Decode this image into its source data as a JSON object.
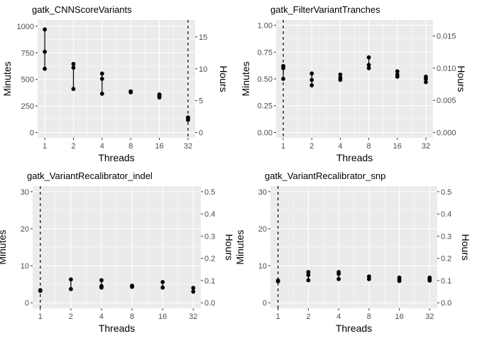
{
  "figure": {
    "background": "#ffffff",
    "panel_bg": "#ebebeb",
    "grid": "#ffffff",
    "point_color": "#000000",
    "vline_color": "#000000"
  },
  "chart_data": [
    {
      "type": "scatter",
      "title": "gatk_CNNScoreVariants",
      "xlabel": "Threads",
      "ylabel": "Minutes",
      "y2label": "Hours",
      "x_scale": "log2",
      "x_ticks": [
        1,
        2,
        4,
        8,
        16,
        32
      ],
      "ylim": [
        -50,
        1060
      ],
      "y_ticks": [
        0,
        250,
        500,
        750,
        1000
      ],
      "y2_ticks": [
        0,
        5,
        10,
        15
      ],
      "y2_factor_minutes_per_unit": 60,
      "vline_x": 32,
      "points": [
        {
          "x": 1,
          "values": [
            600,
            760,
            970
          ]
        },
        {
          "x": 2,
          "values": [
            410,
            610,
            645
          ]
        },
        {
          "x": 4,
          "values": [
            365,
            505,
            555
          ]
        },
        {
          "x": 8,
          "values": [
            378,
            387
          ]
        },
        {
          "x": 16,
          "values": [
            330,
            345,
            358
          ]
        },
        {
          "x": 32,
          "values": [
            118,
            132,
            142
          ]
        }
      ]
    },
    {
      "type": "scatter",
      "title": "gatk_FilterVariantTranches",
      "xlabel": "Threads",
      "ylabel": "Minutes",
      "y2label": "Hours",
      "x_scale": "log2",
      "x_ticks": [
        1,
        2,
        4,
        8,
        16,
        32
      ],
      "ylim": [
        -0.05,
        1.05
      ],
      "y_ticks": [
        0.0,
        0.25,
        0.5,
        0.75,
        1.0
      ],
      "y_tick_labels": [
        "0.00",
        "0.25",
        "0.50",
        "0.75",
        "1.00"
      ],
      "y2_ticks": [
        0.0,
        0.005,
        0.01,
        0.015
      ],
      "y2_tick_labels": [
        "0.000",
        "0.005",
        "0.010",
        "0.015"
      ],
      "y2_factor_minutes_per_unit": 60,
      "vline_x": 1,
      "points": [
        {
          "x": 1,
          "values": [
            0.5,
            0.6,
            0.62
          ]
        },
        {
          "x": 2,
          "values": [
            0.44,
            0.49,
            0.55
          ]
        },
        {
          "x": 4,
          "values": [
            0.49,
            0.51,
            0.54
          ]
        },
        {
          "x": 8,
          "values": [
            0.6,
            0.63,
            0.7
          ]
        },
        {
          "x": 16,
          "values": [
            0.52,
            0.54,
            0.57
          ]
        },
        {
          "x": 32,
          "values": [
            0.47,
            0.5,
            0.52
          ]
        }
      ]
    },
    {
      "type": "scatter",
      "title": "gatk_VariantRecalibrator_indel",
      "xlabel": "Threads",
      "ylabel": "Minutes",
      "y2label": "Hours",
      "x_scale": "log2",
      "x_ticks": [
        1,
        2,
        4,
        8,
        16,
        32
      ],
      "ylim": [
        -1.5,
        31.5
      ],
      "y_ticks": [
        0,
        10,
        20,
        30
      ],
      "y2_ticks": [
        0.0,
        0.1,
        0.2,
        0.3,
        0.4,
        0.5
      ],
      "y2_tick_labels": [
        "0.0",
        "0.1",
        "0.2",
        "0.3",
        "0.4",
        "0.5"
      ],
      "y2_factor_minutes_per_unit": 60,
      "vline_x": 1,
      "points": [
        {
          "x": 1,
          "values": [
            3.2,
            3.4
          ]
        },
        {
          "x": 2,
          "values": [
            3.7,
            6.3
          ]
        },
        {
          "x": 4,
          "values": [
            4.1,
            4.5,
            6.1
          ]
        },
        {
          "x": 8,
          "values": [
            4.3,
            4.6
          ]
        },
        {
          "x": 16,
          "values": [
            4.1,
            5.6
          ]
        },
        {
          "x": 32,
          "values": [
            3.0,
            4.0
          ]
        }
      ]
    },
    {
      "type": "scatter",
      "title": "gatk_VariantRecalibrator_snp",
      "xlabel": "Threads",
      "ylabel": "Minutes",
      "y2label": "Hours",
      "x_scale": "log2",
      "x_ticks": [
        1,
        2,
        4,
        8,
        16,
        32
      ],
      "ylim": [
        -1.5,
        31.5
      ],
      "y_ticks": [
        0,
        10,
        20,
        30
      ],
      "y2_ticks": [
        0.0,
        0.1,
        0.2,
        0.3,
        0.4,
        0.5
      ],
      "y2_tick_labels": [
        "0.0",
        "0.1",
        "0.2",
        "0.3",
        "0.4",
        "0.5"
      ],
      "y2_factor_minutes_per_unit": 60,
      "vline_x": 1,
      "points": [
        {
          "x": 1,
          "values": [
            5.8,
            6.0
          ]
        },
        {
          "x": 2,
          "values": [
            6.1,
            7.5,
            8.3
          ]
        },
        {
          "x": 4,
          "values": [
            6.4,
            7.8,
            8.3
          ]
        },
        {
          "x": 8,
          "values": [
            6.4,
            7.1
          ]
        },
        {
          "x": 16,
          "values": [
            5.9,
            6.3,
            6.8
          ]
        },
        {
          "x": 32,
          "values": [
            6.0,
            6.4,
            6.8
          ]
        }
      ]
    }
  ]
}
